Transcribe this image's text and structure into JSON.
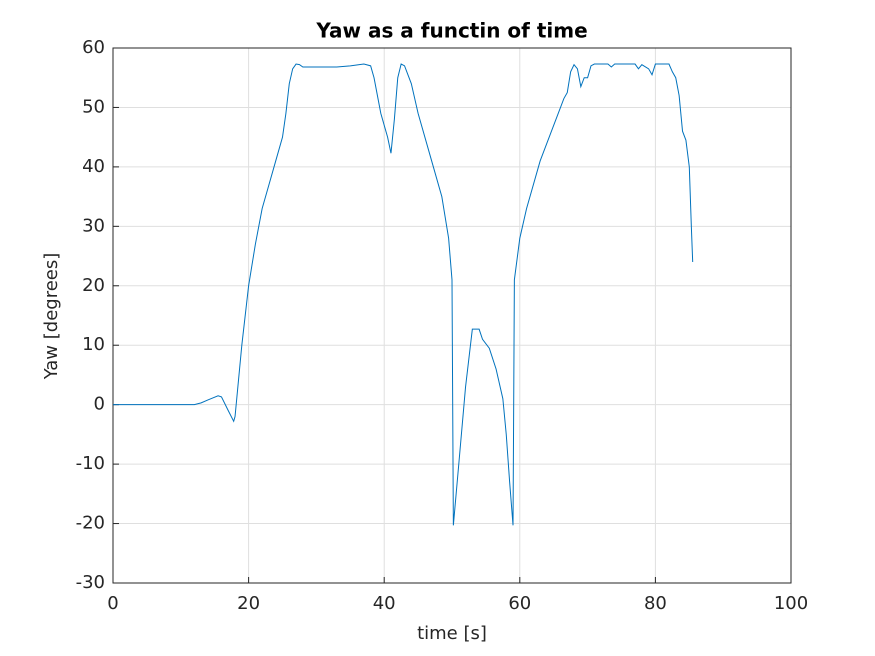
{
  "chart_data": {
    "type": "line",
    "title": "Yaw as a functin of time",
    "x_label": "time [s]",
    "y_label": "Yaw [degrees]",
    "xlim": [
      0,
      100
    ],
    "ylim": [
      -30,
      60
    ],
    "xticks": [
      0,
      20,
      40,
      60,
      80,
      100
    ],
    "yticks": [
      -30,
      -20,
      -10,
      0,
      10,
      20,
      30,
      40,
      50,
      60
    ],
    "grid": true,
    "series": [
      {
        "name": "Yaw",
        "color": "#0072bd",
        "x": [
          0,
          12,
          13,
          14,
          15.5,
          16,
          17,
          17.8,
          18,
          19,
          20,
          21,
          22,
          23,
          24,
          25,
          25.5,
          26,
          26.5,
          27,
          27.5,
          28,
          30,
          33,
          35,
          37,
          38,
          38.5,
          39.5,
          40.5,
          41,
          41.5,
          42,
          42.5,
          43,
          44,
          45,
          47,
          48.5,
          49.5,
          50,
          50.2,
          51,
          52,
          53,
          54,
          54.5,
          55.5,
          56.5,
          57.5,
          58,
          58.5,
          59,
          59.2,
          60,
          61,
          63,
          65,
          66.5,
          67,
          67.5,
          68,
          68.5,
          69,
          69.5,
          70,
          70.5,
          71,
          73,
          73.5,
          74,
          77,
          77.5,
          78,
          79,
          79.5,
          80,
          81,
          82,
          82.5,
          83,
          83.5,
          84,
          84.5,
          85,
          85.3,
          85.5
        ],
        "values": [
          0,
          0,
          0.3,
          0.8,
          1.5,
          1.3,
          -1,
          -2.8,
          -2,
          10,
          20,
          27,
          33,
          37,
          41,
          45,
          49,
          54,
          56.5,
          57.3,
          57.2,
          56.8,
          56.8,
          56.8,
          57,
          57.3,
          57,
          55,
          49,
          45,
          42.3,
          48,
          55,
          57.3,
          57,
          54,
          49,
          41,
          35,
          28,
          21,
          -20.3,
          -10,
          3,
          12.7,
          12.7,
          11,
          9.5,
          6,
          1,
          -5,
          -13,
          -20.3,
          21,
          28,
          33,
          41,
          47,
          51.5,
          52.5,
          56,
          57.2,
          56.5,
          53.5,
          55,
          55,
          57,
          57.3,
          57.3,
          56.8,
          57.3,
          57.3,
          56.5,
          57.2,
          56.5,
          55.5,
          57.3,
          57.3,
          57.3,
          56,
          55,
          52,
          46,
          44.5,
          40,
          30,
          24
        ]
      }
    ]
  }
}
